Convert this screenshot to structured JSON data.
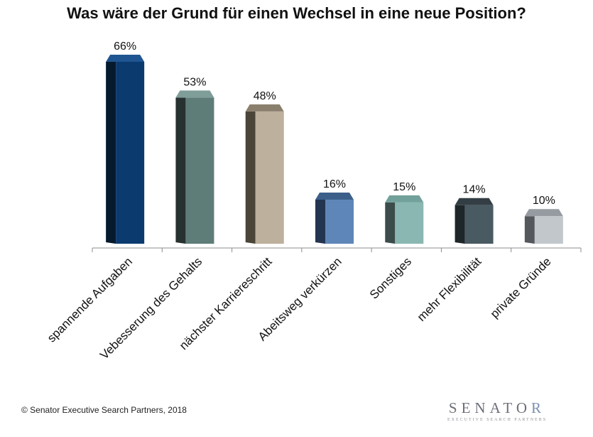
{
  "chart_data": {
    "type": "bar",
    "title": "Was wäre der Grund für einen Wechsel in eine neue Position?",
    "categories": [
      "spannende Aufgaben",
      "Vebesserung des Gehalts",
      "nächster Karriereschritt",
      "Abeitsweg verkürzen",
      "Sonstiges",
      "mehr Flexibilität",
      "private Gründe"
    ],
    "values": [
      66,
      53,
      48,
      16,
      15,
      14,
      10
    ],
    "value_labels": [
      "66%",
      "53%",
      "48%",
      "16%",
      "15%",
      "14%",
      "10%"
    ],
    "unit": "%",
    "ylim": [
      0,
      70
    ],
    "grid": false,
    "legend": "none",
    "colors": [
      "#0b3a6e",
      "#5e7c78",
      "#bdb09c",
      "#5f86b8",
      "#8ab7b1",
      "#4a5a63",
      "#c2c7cc"
    ],
    "side_colors": [
      "#061a2e",
      "#27312f",
      "#4b4438",
      "#243550",
      "#3b4c4a",
      "#1f2629",
      "#55595d"
    ],
    "top_colors": [
      "#1f5590",
      "#7f9d99",
      "#8a7f6d",
      "#3c5f8a",
      "#72a09a",
      "#333e44",
      "#969ba1"
    ]
  },
  "footer": {
    "copyright": "© Senator Executive Search Partners, 2018",
    "logo_main": "SENATO",
    "logo_accent": "R",
    "logo_sub": "EXECUTIVE SEARCH PARTNERS"
  }
}
